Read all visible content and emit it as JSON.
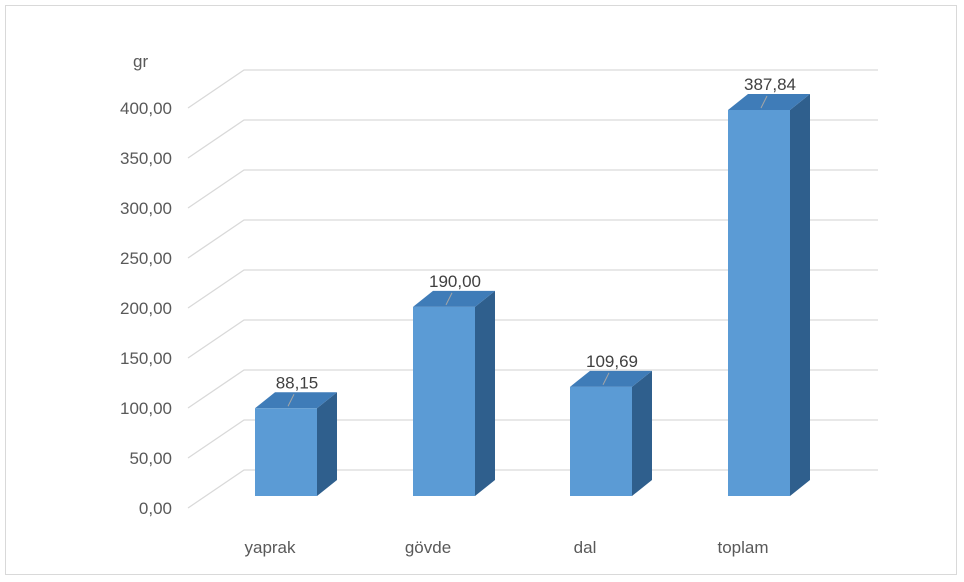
{
  "chart_data": {
    "type": "bar",
    "style": "3d-column",
    "unit_label": "gr",
    "categories": [
      "yaprak",
      "gövde",
      "dal",
      "toplam"
    ],
    "values": [
      88.15,
      190.0,
      109.69,
      387.84
    ],
    "data_labels": [
      "88,15",
      "190,00",
      "109,69",
      "387,84"
    ],
    "y_ticks": [
      "0,00",
      "50,00",
      "100,00",
      "150,00",
      "200,00",
      "250,00",
      "300,00",
      "350,00",
      "400,00"
    ],
    "ylim": [
      0,
      400
    ],
    "grid": true,
    "colors": {
      "bar_front": "#5b9bd5",
      "bar_side": "#2f5f8d",
      "bar_top": "#3f7cb8",
      "grid": "#d9d9d9"
    }
  }
}
